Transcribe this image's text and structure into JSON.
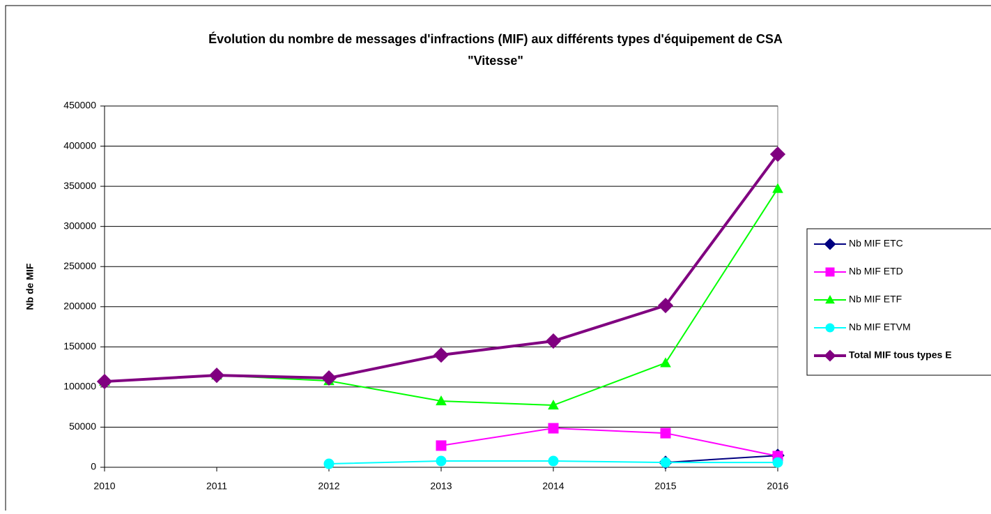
{
  "chart_data": {
    "type": "line",
    "title": [
      "Évolution du nombre de messages d'infractions (MIF) aux différents types d'équipement de CSA",
      "\"Vitesse\""
    ],
    "y_label": "Nb de MIF",
    "categories": [
      "2010",
      "2011",
      "2012",
      "2013",
      "2014",
      "2015",
      "2016"
    ],
    "series": [
      {
        "name": "Nb MIF ETC",
        "color": "#000080",
        "marker": "diamond",
        "values": [
          null,
          null,
          null,
          null,
          null,
          6000,
          14700
        ]
      },
      {
        "name": "Nb MIF ETD",
        "color": "#ff00ff",
        "marker": "square",
        "values": [
          null,
          null,
          null,
          27000,
          48600,
          42500,
          13900
        ]
      },
      {
        "name": "Nb MIF ETF",
        "color": "#00ff00",
        "marker": "triangle",
        "values": [
          106800,
          114600,
          107600,
          82500,
          77300,
          130000,
          347000
        ]
      },
      {
        "name": "Nb MIF ETVM",
        "color": "#00ffff",
        "marker": "circle",
        "values": [
          null,
          null,
          4300,
          7800,
          7800,
          6000,
          6000
        ]
      },
      {
        "name": "Total MIF tous types E",
        "color": "#800080",
        "marker": "diamond",
        "bold": true,
        "values": [
          106800,
          114600,
          111200,
          139800,
          157200,
          201500,
          390000
        ]
      }
    ],
    "ylim": [
      0,
      450000
    ],
    "yticks": [
      0,
      50000,
      100000,
      150000,
      200000,
      250000,
      300000,
      350000,
      400000,
      450000
    ],
    "grid": true,
    "legend": "right"
  }
}
